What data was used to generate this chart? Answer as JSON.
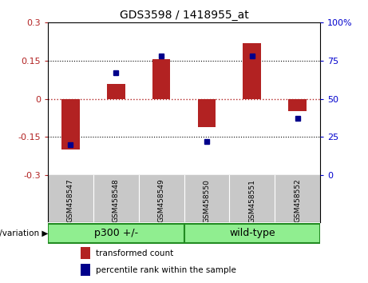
{
  "title": "GDS3598 / 1418955_at",
  "samples": [
    "GSM458547",
    "GSM458548",
    "GSM458549",
    "GSM458550",
    "GSM458551",
    "GSM458552"
  ],
  "bar_values": [
    -0.2,
    0.06,
    0.155,
    -0.11,
    0.22,
    -0.05
  ],
  "percentile_values": [
    20,
    67,
    78,
    22,
    78,
    37
  ],
  "bar_color": "#B22222",
  "dot_color": "#00008B",
  "ylim_left": [
    -0.3,
    0.3
  ],
  "ylim_right": [
    0,
    100
  ],
  "yticks_left": [
    -0.3,
    -0.15,
    0,
    0.15,
    0.3
  ],
  "yticks_right": [
    0,
    25,
    50,
    75,
    100
  ],
  "hline_dotted_values": [
    -0.15,
    0.15
  ],
  "hline_red_value": 0,
  "groups": [
    {
      "label": "p300 +/-",
      "indices": [
        0,
        1,
        2
      ],
      "color": "#90EE90"
    },
    {
      "label": "wild-type",
      "indices": [
        3,
        4,
        5
      ],
      "color": "#90EE90"
    }
  ],
  "group_border_color": "#228B22",
  "xlabel_group": "genotype/variation",
  "legend_bar_label": "transformed count",
  "legend_dot_label": "percentile rank within the sample",
  "bg_color": "#FFFFFF",
  "plot_bg_color": "#FFFFFF",
  "tick_label_color_left": "#B22222",
  "tick_label_color_right": "#0000CD",
  "bar_width": 0.4,
  "sample_bg_color": "#C8C8C8"
}
